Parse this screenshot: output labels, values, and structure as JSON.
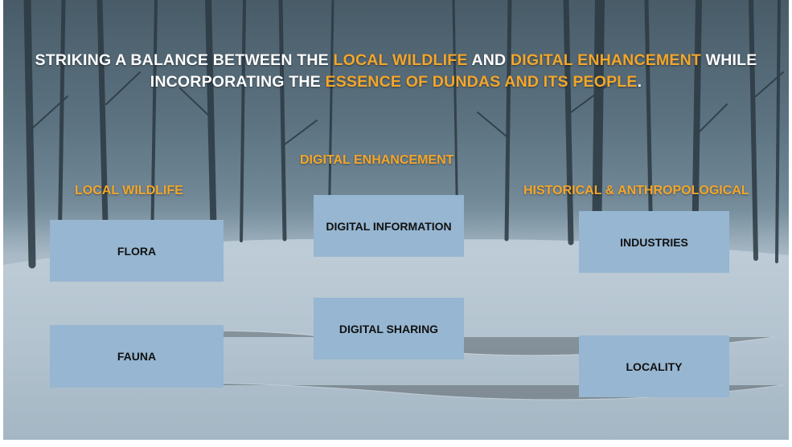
{
  "title": {
    "line1": [
      {
        "text": "STRIKING A BALANCE BETWEEN THE ",
        "highlight": false
      },
      {
        "text": "LOCAL WILDLIFE",
        "highlight": true
      },
      {
        "text": " AND ",
        "highlight": false
      },
      {
        "text": "DIGITAL ENHANCEMENT",
        "highlight": true
      },
      {
        "text": " WHILE",
        "highlight": false
      }
    ],
    "line2": [
      {
        "text": "INCORPORATING THE ",
        "highlight": false
      },
      {
        "text": "ESSENCE OF DUNDAS AND ITS PEOPLE",
        "highlight": true
      },
      {
        "text": ".",
        "highlight": false
      }
    ]
  },
  "columns": {
    "wildlife": {
      "heading": "LOCAL WILDLIFE",
      "items": [
        "FLORA",
        "FAUNA"
      ]
    },
    "digital": {
      "heading": "DIGITAL ENHANCEMENT",
      "items": [
        "DIGITAL INFORMATION",
        "DIGITAL SHARING"
      ]
    },
    "historical": {
      "heading": "HISTORICAL & ANTHROPOLOGICAL",
      "items": [
        "INDUSTRIES",
        "LOCALITY"
      ]
    }
  },
  "colors": {
    "accent": "#f4a62a",
    "box": "#96b6d1",
    "text_dark": "#111111",
    "title": "#ffffff"
  },
  "background": "snowy-forest-path"
}
